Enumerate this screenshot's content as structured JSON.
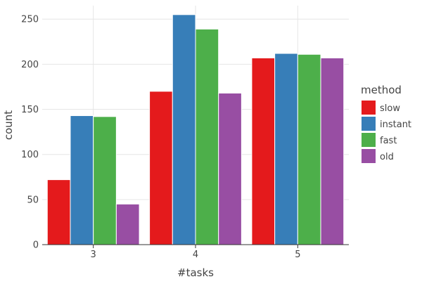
{
  "chart_data": {
    "type": "bar",
    "categories": [
      "3",
      "4",
      "5"
    ],
    "series": [
      {
        "name": "slow",
        "color": "#e41a1c",
        "values": [
          72,
          170,
          207
        ]
      },
      {
        "name": "instant",
        "color": "#377eb8",
        "values": [
          143,
          255,
          212
        ]
      },
      {
        "name": "fast",
        "color": "#4daf4a",
        "values": [
          142,
          239,
          211
        ]
      },
      {
        "name": "old",
        "color": "#984ea3",
        "values": [
          45,
          168,
          207
        ]
      }
    ],
    "xlabel": "#tasks",
    "ylabel": "count",
    "ylim": [
      0,
      265
    ],
    "yticks": [
      0,
      50,
      100,
      150,
      200,
      250
    ],
    "legend_title": "method",
    "legend_position": "right",
    "grid": true
  }
}
